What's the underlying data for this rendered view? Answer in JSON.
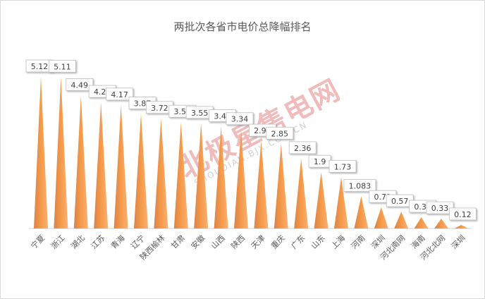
{
  "chart_data": {
    "type": "bar",
    "title": "两批次各省市电价总降幅排名",
    "categories": [
      "宁夏",
      "浙江",
      "湖北",
      "江苏",
      "青海",
      "辽宁",
      "陕西榆林",
      "甘肃",
      "安徽",
      "山西",
      "陕西",
      "天津",
      "重庆",
      "广东",
      "山东",
      "上海",
      "河南",
      "深圳",
      "河北南网",
      "海南",
      "河北北网",
      "深圳"
    ],
    "values": [
      5.12,
      5.11,
      4.49,
      4.26,
      4.17,
      3.87,
      3.72,
      3.59,
      3.55,
      3.44,
      3.34,
      2.95,
      2.85,
      2.36,
      1.9,
      1.73,
      1.083,
      0.71,
      0.57,
      0.38,
      0.33,
      0.12
    ],
    "labels": [
      "5.12",
      "5.11",
      "4.49",
      "4.26",
      "4.17",
      "3.87",
      "3.72",
      "3.59",
      "3.55",
      "3.44",
      "3.34",
      "2.95",
      "2.85",
      "2.36",
      "1.9",
      "1.73",
      "1.083",
      "0.71",
      "0.57",
      "0.38",
      "0.33",
      "0.12"
    ],
    "xlabel": "",
    "ylabel": "",
    "ylim": [
      0,
      5.12
    ],
    "grid": false,
    "legend": "none",
    "color": "#f59a4a"
  },
  "watermark": {
    "text": "北极星售电网",
    "sub": "SHOUDIAN.BJX.COM.CN"
  }
}
